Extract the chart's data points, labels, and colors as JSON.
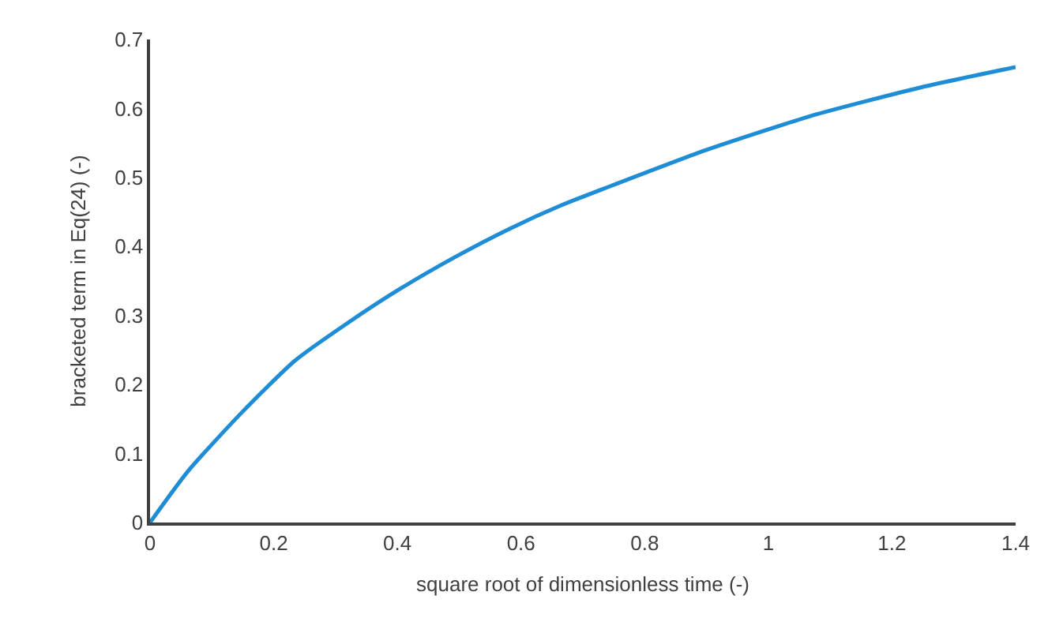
{
  "chart_data": {
    "type": "line",
    "xlabel": "square root of dimensionless time (-)",
    "ylabel": "bracketed term in Eq(24) (-)",
    "x": [
      0,
      0.062,
      0.149,
      0.235,
      0.321,
      0.407,
      0.494,
      0.58,
      0.666,
      0.752,
      0.9,
      1.072,
      1.244,
      1.4
    ],
    "series": [
      {
        "color": "#1f8dd6",
        "values": [
          0,
          0.075,
          0.16,
          0.235,
          0.29,
          0.34,
          0.385,
          0.425,
          0.46,
          0.49,
          0.54,
          0.59,
          0.63,
          0.66
        ]
      }
    ],
    "xlim": [
      0,
      1.4
    ],
    "xticks": [
      0,
      0.2,
      0.4,
      0.6,
      0.8,
      1,
      1.2,
      1.4
    ],
    "ylim": [
      0,
      0.7
    ],
    "yticks": [
      0,
      0.1,
      0.2,
      0.3,
      0.4,
      0.5,
      0.6,
      0.7
    ],
    "legend": false,
    "marker": "none",
    "line_style": "solid"
  }
}
